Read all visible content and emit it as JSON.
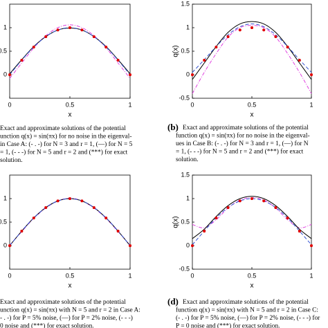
{
  "chart_data": [
    {
      "type": "line",
      "x": [
        0,
        0.1,
        0.2,
        0.3,
        0.4,
        0.5,
        0.6,
        0.7,
        0.8,
        0.9,
        1
      ],
      "xlabel": "x",
      "xlim": [
        0,
        1
      ],
      "xticks": [
        0,
        0.5,
        1
      ],
      "ylim": [
        -0.5,
        1.5
      ],
      "yticks": [
        0,
        0.5,
        1
      ],
      "series": [
        {
          "color": "#e040e0",
          "linestyle": "-.",
          "values": [
            -0.08,
            0.25,
            0.57,
            0.83,
            1.0,
            1.06,
            1.0,
            0.83,
            0.57,
            0.25,
            -0.08
          ]
        },
        {
          "color": "#000000",
          "linestyle": "-",
          "values": [
            0.02,
            0.32,
            0.6,
            0.81,
            0.95,
            0.99,
            0.95,
            0.81,
            0.6,
            0.32,
            0.02
          ]
        },
        {
          "color": "#3050d0",
          "linestyle": "--",
          "values": [
            0,
            0.31,
            0.59,
            0.81,
            0.95,
            1.0,
            0.95,
            0.81,
            0.59,
            0.31,
            0
          ]
        },
        {
          "color": "#e00000",
          "linestyle": "none",
          "values": [
            0,
            0.309,
            0.588,
            0.809,
            0.951,
            1,
            0.951,
            0.809,
            0.588,
            0.309,
            0
          ]
        }
      ],
      "caption": [
        "Exact and approximate solutions of the potential",
        "unction q(x) = sin(πx) for no noise in the eigenval-",
        "in Case A: (- . -) for N = 3 and r = 1, (—) for N = 5",
        "= 1, (- - -) for N = 5 and r = 2 and (***) for exact",
        "solution."
      ]
    },
    {
      "type": "line",
      "x": [
        0,
        0.1,
        0.2,
        0.3,
        0.4,
        0.5,
        0.6,
        0.7,
        0.8,
        0.9,
        1
      ],
      "xlabel": "x",
      "ylabel": "q(x)",
      "xlim": [
        0,
        1
      ],
      "xticks": [
        0,
        0.5,
        1
      ],
      "ylim": [
        -0.5,
        1.5
      ],
      "yticks": [
        -0.5,
        0,
        0.5,
        1,
        1.5
      ],
      "series": [
        {
          "color": "#e040e0",
          "linestyle": "-.",
          "values": [
            -0.4,
            0.05,
            0.45,
            0.8,
            1.0,
            1.05,
            1.0,
            0.8,
            0.45,
            0.05,
            -0.4
          ]
        },
        {
          "color": "#000000",
          "linestyle": "-",
          "values": [
            -0.1,
            0.25,
            0.6,
            0.9,
            1.08,
            1.13,
            1.08,
            0.9,
            0.6,
            0.25,
            -0.1
          ]
        },
        {
          "color": "#3050d0",
          "linestyle": "--",
          "values": [
            0.05,
            0.32,
            0.6,
            0.85,
            1.02,
            1.08,
            1.02,
            0.85,
            0.6,
            0.32,
            0.05
          ]
        },
        {
          "color": "#e00000",
          "linestyle": "none",
          "values": [
            0,
            0.309,
            0.588,
            0.809,
            0.951,
            1,
            0.951,
            0.809,
            0.588,
            0.309,
            0
          ]
        }
      ],
      "caption_label": "(b)",
      "caption": [
        "Exact and approximate solutions of the potential",
        "function q(x) = sin(πx) for no noise in the eigenval-",
        "ues in Case B: (- . -) for N = 3 and r = 1, (—) for N",
        "= 1, (- - -) for N = 5 and r = 2 and (***) for exact",
        "solution."
      ]
    },
    {
      "type": "line",
      "x": [
        0,
        0.1,
        0.2,
        0.3,
        0.4,
        0.5,
        0.6,
        0.7,
        0.8,
        0.9,
        1
      ],
      "xlabel": "x",
      "xlim": [
        0,
        1
      ],
      "xticks": [
        0,
        0.5,
        1
      ],
      "ylim": [
        -0.5,
        1.5
      ],
      "yticks": [
        0,
        0.5,
        1
      ],
      "series": [
        {
          "color": "#e040e0",
          "linestyle": "-.",
          "values": [
            0.01,
            0.3,
            0.58,
            0.8,
            0.95,
            1.01,
            0.95,
            0.8,
            0.58,
            0.3,
            0.01
          ]
        },
        {
          "color": "#000000",
          "linestyle": "-",
          "values": [
            0,
            0.31,
            0.59,
            0.81,
            0.95,
            1.0,
            0.95,
            0.81,
            0.59,
            0.31,
            0
          ]
        },
        {
          "color": "#3050d0",
          "linestyle": "--",
          "values": [
            0,
            0.31,
            0.59,
            0.81,
            0.95,
            1.0,
            0.95,
            0.81,
            0.59,
            0.31,
            0
          ]
        },
        {
          "color": "#e00000",
          "linestyle": "none",
          "values": [
            0,
            0.309,
            0.588,
            0.809,
            0.951,
            1,
            0.951,
            0.809,
            0.588,
            0.309,
            0
          ]
        }
      ],
      "caption": [
        "Exact and approximate solutions of the potential",
        "unction q(x) = sin(πx) with N = 5 and r = 2 in Case A:",
        "- . -) for P = 5% noise, (—) for P = 2% noise, (- - -)",
        "0 noise and (***) for exact solution."
      ]
    },
    {
      "type": "line",
      "x": [
        0,
        0.1,
        0.2,
        0.3,
        0.4,
        0.5,
        0.6,
        0.7,
        0.8,
        0.9,
        1
      ],
      "xlabel": "x",
      "ylabel": "q(x)",
      "xlim": [
        0,
        1
      ],
      "xticks": [
        0,
        0.5,
        1
      ],
      "ylim": [
        -0.5,
        1.5
      ],
      "yticks": [
        -0.5,
        0,
        0.5,
        1,
        1.5
      ],
      "series": [
        {
          "color": "#e040e0",
          "linestyle": "-.",
          "values": [
            0.45,
            0.38,
            0.55,
            0.8,
            0.97,
            1.02,
            0.97,
            0.8,
            0.55,
            0.38,
            0.45
          ]
        },
        {
          "color": "#000000",
          "linestyle": "-",
          "values": [
            0.15,
            0.35,
            0.62,
            0.85,
            1.0,
            1.05,
            1.0,
            0.85,
            0.62,
            0.35,
            0.15
          ]
        },
        {
          "color": "#3050d0",
          "linestyle": "--",
          "values": [
            0.02,
            0.31,
            0.59,
            0.81,
            0.95,
            1.0,
            0.95,
            0.81,
            0.59,
            0.31,
            0.02
          ]
        },
        {
          "color": "#e00000",
          "linestyle": "none",
          "values": [
            0,
            0.309,
            0.588,
            0.809,
            0.951,
            1,
            0.951,
            0.809,
            0.588,
            0.309,
            0
          ]
        }
      ],
      "caption_label": "(d)",
      "caption": [
        "Exact and approximate solutions of the potential",
        "function q(x) = sin(πx) with N = 5 and r = 2 in Case C:",
        "(- . -) for P = 5% noise, (—) for P = 2% noise, (- - -) for",
        "P = 0 noise and (***) for exact solution."
      ]
    }
  ]
}
